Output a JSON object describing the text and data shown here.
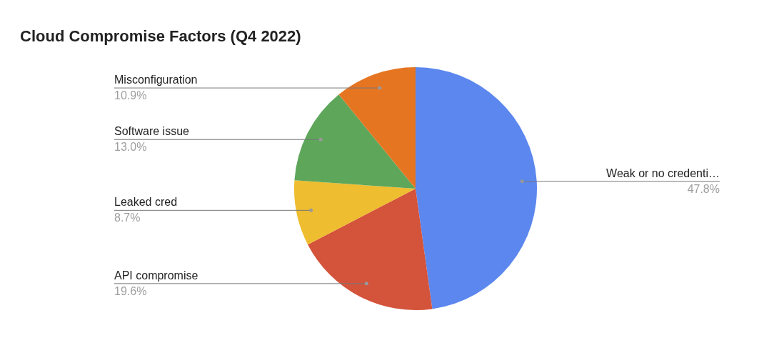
{
  "chart_data": {
    "type": "pie",
    "title": "Cloud Compromise Factors (Q4 2022)",
    "categories": [
      "Weak or no credenti…",
      "API compromise",
      "Leaked cred",
      "Software issue",
      "Misconfiguration"
    ],
    "values": [
      47.8,
      19.6,
      8.7,
      13.0,
      10.9
    ],
    "value_labels": [
      "47.8%",
      "19.6%",
      "8.7%",
      "13.0%",
      "10.9%"
    ],
    "colors": [
      "#5b87ee",
      "#d4533b",
      "#eebd30",
      "#5ea65a",
      "#e67522"
    ],
    "legend": false
  }
}
